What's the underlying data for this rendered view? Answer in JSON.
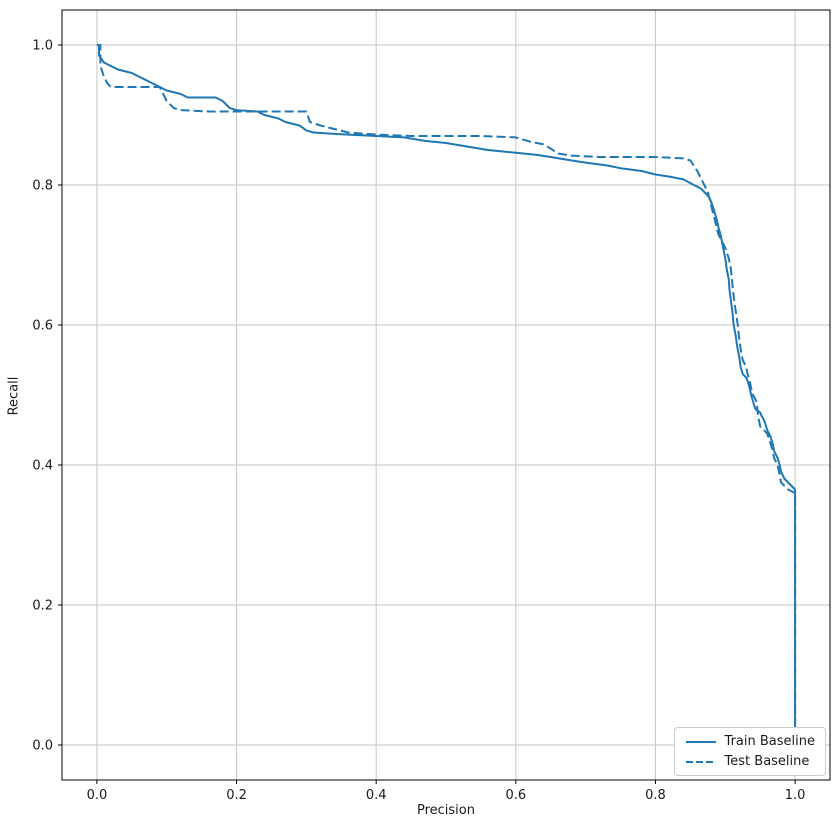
{
  "chart_data": {
    "type": "line",
    "title": "",
    "xlabel": "Precision",
    "ylabel": "Recall",
    "xlim": [
      -0.05,
      1.05
    ],
    "ylim": [
      -0.05,
      1.05
    ],
    "xticks": [
      0.0,
      0.2,
      0.4,
      0.6,
      0.8,
      1.0
    ],
    "yticks": [
      0.0,
      0.2,
      0.4,
      0.6,
      0.8,
      1.0
    ],
    "grid": true,
    "legend_position": "lower right",
    "color": "#1f77b4",
    "series": [
      {
        "name": "Train Baseline",
        "style": "solid",
        "points": [
          [
            0.0,
            1.0
          ],
          [
            0.003,
            1.0
          ],
          [
            0.003,
            0.985
          ],
          [
            0.01,
            0.975
          ],
          [
            0.02,
            0.97
          ],
          [
            0.03,
            0.965
          ],
          [
            0.05,
            0.96
          ],
          [
            0.06,
            0.955
          ],
          [
            0.07,
            0.95
          ],
          [
            0.08,
            0.945
          ],
          [
            0.09,
            0.94
          ],
          [
            0.1,
            0.935
          ],
          [
            0.12,
            0.93
          ],
          [
            0.13,
            0.925
          ],
          [
            0.17,
            0.925
          ],
          [
            0.18,
            0.92
          ],
          [
            0.19,
            0.91
          ],
          [
            0.2,
            0.907
          ],
          [
            0.23,
            0.905
          ],
          [
            0.24,
            0.9
          ],
          [
            0.26,
            0.895
          ],
          [
            0.27,
            0.89
          ],
          [
            0.29,
            0.885
          ],
          [
            0.3,
            0.878
          ],
          [
            0.31,
            0.875
          ],
          [
            0.34,
            0.873
          ],
          [
            0.36,
            0.872
          ],
          [
            0.4,
            0.87
          ],
          [
            0.44,
            0.868
          ],
          [
            0.47,
            0.863
          ],
          [
            0.5,
            0.86
          ],
          [
            0.53,
            0.855
          ],
          [
            0.56,
            0.85
          ],
          [
            0.58,
            0.848
          ],
          [
            0.6,
            0.846
          ],
          [
            0.63,
            0.843
          ],
          [
            0.65,
            0.84
          ],
          [
            0.68,
            0.835
          ],
          [
            0.7,
            0.832
          ],
          [
            0.73,
            0.828
          ],
          [
            0.75,
            0.824
          ],
          [
            0.78,
            0.82
          ],
          [
            0.8,
            0.815
          ],
          [
            0.82,
            0.812
          ],
          [
            0.84,
            0.808
          ],
          [
            0.855,
            0.8
          ],
          [
            0.865,
            0.795
          ],
          [
            0.87,
            0.79
          ],
          [
            0.875,
            0.785
          ],
          [
            0.878,
            0.78
          ],
          [
            0.882,
            0.77
          ],
          [
            0.885,
            0.76
          ],
          [
            0.888,
            0.75
          ],
          [
            0.89,
            0.74
          ],
          [
            0.893,
            0.73
          ],
          [
            0.895,
            0.72
          ],
          [
            0.897,
            0.71
          ],
          [
            0.9,
            0.695
          ],
          [
            0.902,
            0.68
          ],
          [
            0.905,
            0.665
          ],
          [
            0.906,
            0.65
          ],
          [
            0.908,
            0.635
          ],
          [
            0.91,
            0.62
          ],
          [
            0.912,
            0.6
          ],
          [
            0.915,
            0.585
          ],
          [
            0.917,
            0.57
          ],
          [
            0.92,
            0.555
          ],
          [
            0.922,
            0.54
          ],
          [
            0.925,
            0.53
          ],
          [
            0.93,
            0.525
          ],
          [
            0.932,
            0.52
          ],
          [
            0.935,
            0.51
          ],
          [
            0.937,
            0.5
          ],
          [
            0.94,
            0.49
          ],
          [
            0.943,
            0.48
          ],
          [
            0.95,
            0.475
          ],
          [
            0.952,
            0.47
          ],
          [
            0.955,
            0.465
          ],
          [
            0.957,
            0.46
          ],
          [
            0.96,
            0.45
          ],
          [
            0.965,
            0.44
          ],
          [
            0.968,
            0.43
          ],
          [
            0.97,
            0.42
          ],
          [
            0.975,
            0.41
          ],
          [
            0.978,
            0.4
          ],
          [
            0.98,
            0.39
          ],
          [
            0.985,
            0.38
          ],
          [
            0.99,
            0.375
          ],
          [
            0.995,
            0.37
          ],
          [
            1.0,
            0.365
          ],
          [
            1.0,
            0.02
          ]
        ]
      },
      {
        "name": "Test Baseline",
        "style": "dashed",
        "points": [
          [
            0.0,
            1.0
          ],
          [
            0.005,
            1.0
          ],
          [
            0.005,
            0.97
          ],
          [
            0.01,
            0.955
          ],
          [
            0.015,
            0.945
          ],
          [
            0.02,
            0.94
          ],
          [
            0.09,
            0.94
          ],
          [
            0.1,
            0.92
          ],
          [
            0.11,
            0.91
          ],
          [
            0.12,
            0.907
          ],
          [
            0.16,
            0.905
          ],
          [
            0.3,
            0.905
          ],
          [
            0.305,
            0.89
          ],
          [
            0.32,
            0.885
          ],
          [
            0.34,
            0.88
          ],
          [
            0.36,
            0.875
          ],
          [
            0.4,
            0.872
          ],
          [
            0.45,
            0.87
          ],
          [
            0.55,
            0.87
          ],
          [
            0.6,
            0.868
          ],
          [
            0.62,
            0.862
          ],
          [
            0.64,
            0.858
          ],
          [
            0.65,
            0.852
          ],
          [
            0.66,
            0.845
          ],
          [
            0.68,
            0.842
          ],
          [
            0.72,
            0.84
          ],
          [
            0.8,
            0.84
          ],
          [
            0.84,
            0.838
          ],
          [
            0.85,
            0.835
          ],
          [
            0.86,
            0.82
          ],
          [
            0.865,
            0.81
          ],
          [
            0.87,
            0.8
          ],
          [
            0.875,
            0.79
          ],
          [
            0.88,
            0.77
          ],
          [
            0.885,
            0.75
          ],
          [
            0.89,
            0.73
          ],
          [
            0.895,
            0.72
          ],
          [
            0.9,
            0.71
          ],
          [
            0.905,
            0.695
          ],
          [
            0.908,
            0.68
          ],
          [
            0.91,
            0.66
          ],
          [
            0.912,
            0.64
          ],
          [
            0.915,
            0.62
          ],
          [
            0.918,
            0.6
          ],
          [
            0.92,
            0.58
          ],
          [
            0.923,
            0.56
          ],
          [
            0.925,
            0.55
          ],
          [
            0.93,
            0.54
          ],
          [
            0.932,
            0.53
          ],
          [
            0.935,
            0.52
          ],
          [
            0.937,
            0.51
          ],
          [
            0.94,
            0.5
          ],
          [
            0.945,
            0.49
          ],
          [
            0.947,
            0.47
          ],
          [
            0.95,
            0.455
          ],
          [
            0.955,
            0.45
          ],
          [
            0.96,
            0.445
          ],
          [
            0.965,
            0.43
          ],
          [
            0.968,
            0.42
          ],
          [
            0.97,
            0.41
          ],
          [
            0.975,
            0.4
          ],
          [
            0.978,
            0.385
          ],
          [
            0.98,
            0.375
          ],
          [
            0.985,
            0.37
          ],
          [
            0.99,
            0.365
          ],
          [
            1.0,
            0.36
          ],
          [
            1.0,
            0.03
          ]
        ]
      }
    ]
  }
}
